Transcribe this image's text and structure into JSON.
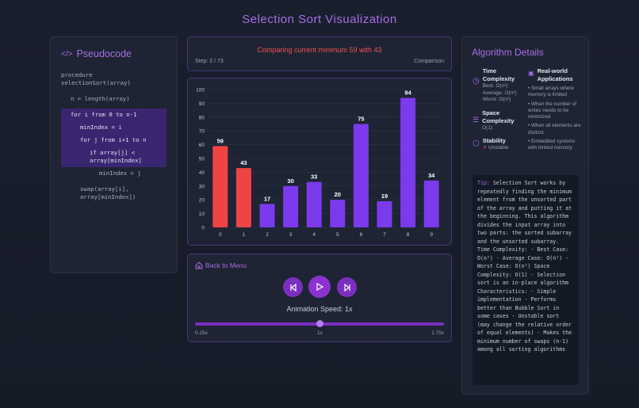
{
  "title": "Selection Sort Visualization",
  "pseudocode": {
    "heading": "Pseudocode",
    "lines": [
      {
        "text": "procedure selectionSort(array)",
        "indent": 0,
        "highlight": false
      },
      {
        "text": "n = length(array)",
        "indent": 1,
        "highlight": false
      },
      {
        "text": "for i from 0 to n-1",
        "indent": 1,
        "highlight": true
      },
      {
        "text": "minIndex = i",
        "indent": 2,
        "highlight": true
      },
      {
        "text": "for j from i+1 to n",
        "indent": 2,
        "highlight": true
      },
      {
        "text": "if array[j] < array[minIndex]",
        "indent": 3,
        "highlight": true
      },
      {
        "text": "minIndex = j",
        "indent": 4,
        "highlight": false
      },
      {
        "text": "swap(array[i], array[minIndex])",
        "indent": 2,
        "highlight": false
      }
    ]
  },
  "status": {
    "message": "Comparing current minimum 59 with 43",
    "step": "Step: 2 / 73",
    "phase": "Comparison"
  },
  "chart_data": {
    "type": "bar",
    "categories": [
      "0",
      "1",
      "2",
      "3",
      "4",
      "5",
      "6",
      "7",
      "8",
      "9"
    ],
    "values": [
      59,
      43,
      17,
      30,
      33,
      20,
      75,
      19,
      94,
      34
    ],
    "ylim": [
      0,
      100
    ],
    "yticks": [
      0,
      10,
      20,
      30,
      40,
      50,
      60,
      70,
      80,
      90,
      100
    ],
    "highlighted": [
      0,
      1
    ],
    "colors": {
      "default": "#7c3aed",
      "compare": "#ef4444"
    },
    "grid": true
  },
  "controls": {
    "back": "Back to Menu",
    "speed_label": "Animation Speed: 1x",
    "speed_value": 1,
    "speed_min_label": "0.25x",
    "speed_mid_label": "1x",
    "speed_max_label": "1.75x",
    "speed_fraction": 0.5
  },
  "details": {
    "heading": "Algorithm Details",
    "time": {
      "title": "Time Complexity",
      "best": "Best: O(n²)",
      "avg": "Average: O(n²)",
      "worst": "Worst: O(n²)"
    },
    "space": {
      "title": "Space Complexity",
      "value": "O(1)"
    },
    "stability": {
      "title": "Stability",
      "value": "Unstable"
    },
    "apps": {
      "title": "Real-world Applications",
      "items": [
        "Small arrays where memory is limited",
        "When the number of writes needs to be minimized",
        "When all elements are distinct",
        "Embedded systems with limited memory"
      ]
    },
    "tip_label": "Tip:",
    "tip": " Selection Sort works by repeatedly finding the minimum element from the unsorted part of the array and putting it at the beginning. This algorithm divides the input array into two parts: the sorted subarray and the unsorted subarray. Time Complexity: - Best Case: O(n²) - Average Case: O(n²) - Worst Case: O(n²) Space Complexity: O(1) - Selection sort is an in-place algorithm Characteristics: - Simple implementation - Performs better than Bubble Sort in some cases - Unstable sort (may change the relative order of equal elements) - Makes the minimum number of swaps (n-1) among all sorting algorithms"
  },
  "colors": {
    "accent": "#a66de6",
    "button": "#7b2fc1",
    "error": "#f05252"
  }
}
